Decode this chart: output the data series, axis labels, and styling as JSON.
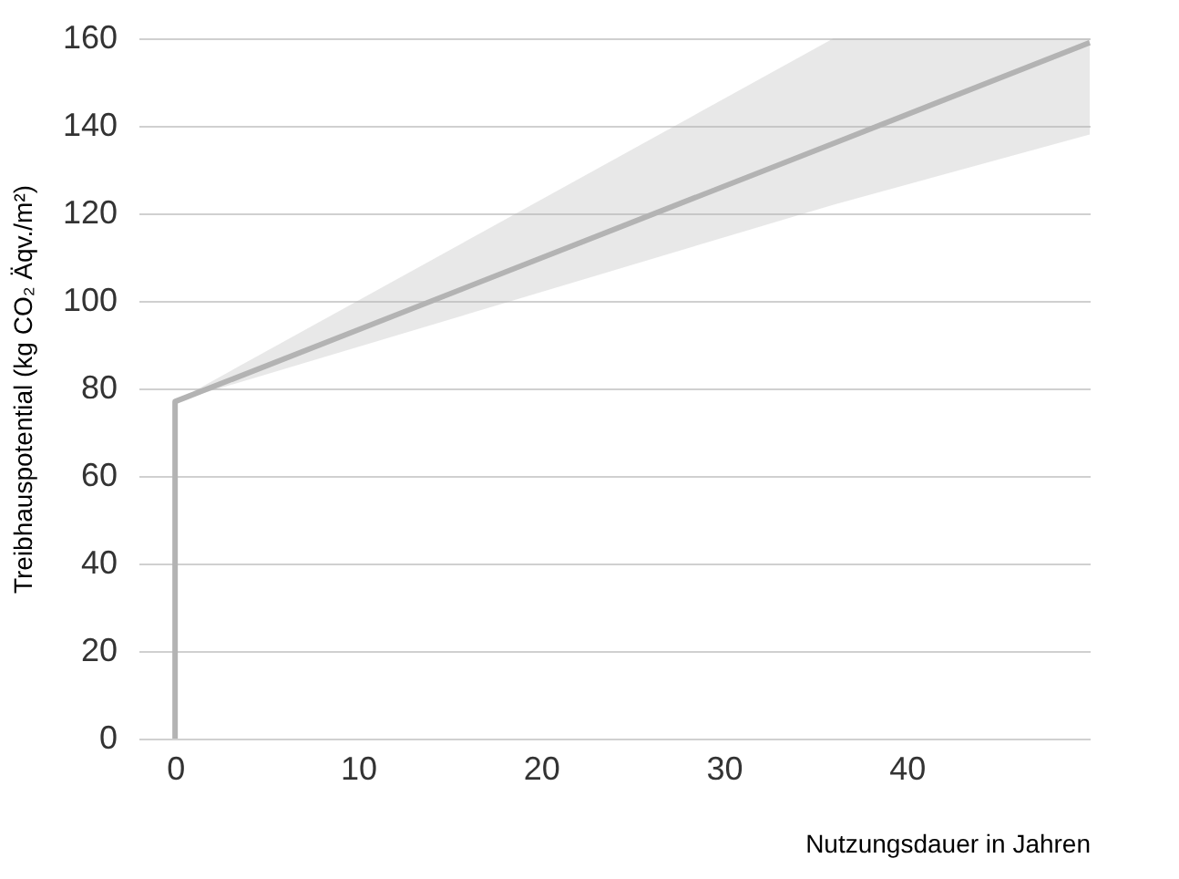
{
  "chart_data": {
    "type": "line",
    "xlabel": "Nutzungsdauer in Jahren",
    "ylabel": "Treibhauspotential (kg CO₂ Äqv./m²)",
    "x": [
      0,
      0,
      36,
      50
    ],
    "series": [
      {
        "color": "#b3b3b3",
        "values": [
          0,
          77,
          136,
          159
        ],
        "lower": [
          null,
          77,
          122,
          138
        ],
        "upper": [
          null,
          77,
          160,
          160
        ]
      }
    ],
    "xlim": [
      -2,
      50
    ],
    "xticks": [
      0,
      10,
      20,
      30,
      40
    ],
    "ylim": [
      0,
      160
    ],
    "yticks": [
      0,
      20,
      40,
      60,
      80,
      100,
      120,
      140,
      160
    ],
    "grid": "y"
  }
}
